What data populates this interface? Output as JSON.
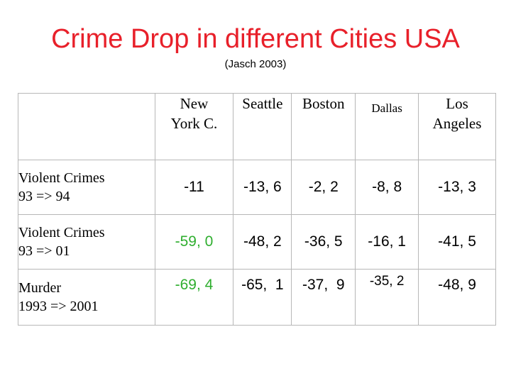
{
  "title": "Crime Drop in different Cities USA",
  "subtitle": "(Jasch 2003)",
  "colors": {
    "title": "#e8202a",
    "highlight": "#2fae2f"
  },
  "table": {
    "columns": [
      "",
      "New York C.",
      "Seattle",
      "Boston",
      "Dallas",
      "Los Angeles"
    ],
    "rows": [
      {
        "label_line1": "Violent Crimes",
        "label_line2": "93 => 94",
        "values": [
          "-11",
          "-13, 6",
          "-2, 2",
          "-8, 8",
          "-13, 3"
        ]
      },
      {
        "label_line1": "Violent Crimes",
        "label_line2": "93 => 01",
        "values": [
          "-59, 0",
          "-48, 2",
          "-36, 5",
          "-16, 1",
          "-41, 5"
        ]
      },
      {
        "label_line1": "Murder",
        "label_line2": "1993 => 2001",
        "values": [
          "-69, 4",
          "-65,  1",
          "-37,  9",
          "-35, 2",
          "-48, 9"
        ]
      }
    ]
  }
}
